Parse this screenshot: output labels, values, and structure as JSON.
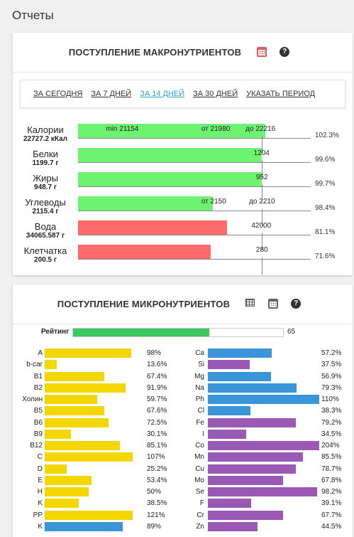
{
  "page_title": "Отчеты",
  "macro": {
    "title": "ПОСТУПЛЕНИЕ МАКРОНУТРИЕНТОВ",
    "periods": [
      "ЗА СЕГОДНЯ",
      "ЗА 7 ДНЕЙ",
      "ЗА 14 ДНЕЙ",
      "ЗА 30 ДНЕЙ",
      "УКАЗАТЬ ПЕРИОД"
    ],
    "active_period": 2,
    "rows": [
      {
        "name": "Калории",
        "value": "22727.2 кКал",
        "pct": "102.3%",
        "fill": 0.806,
        "color": "green",
        "labels": [
          {
            "t": "min 21154",
            "x": 0.12
          },
          {
            "t": "от 21980",
            "x": 0.53
          },
          {
            "t": "до 22216",
            "x": 0.72
          }
        ]
      },
      {
        "name": "Белки",
        "value": "1199.7 г",
        "pct": "99.6%",
        "fill": 0.79,
        "color": "green",
        "labels": [
          {
            "t": "1204",
            "x": 0.755
          }
        ]
      },
      {
        "name": "Жиры",
        "value": "948.7 г",
        "pct": "99.7%",
        "fill": 0.79,
        "color": "green",
        "labels": [
          {
            "t": "952",
            "x": 0.765
          }
        ]
      },
      {
        "name": "Углеводы",
        "value": "2115.4 г",
        "pct": "98.4%",
        "fill": 0.58,
        "color": "green",
        "labels": [
          {
            "t": "от 2150",
            "x": 0.53
          },
          {
            "t": "до 2210",
            "x": 0.735
          }
        ]
      },
      {
        "name": "Вода",
        "value": "34065.587 г",
        "pct": "81.1%",
        "fill": 0.64,
        "color": "red",
        "labels": [
          {
            "t": "42000",
            "x": 0.745
          }
        ]
      },
      {
        "name": "Клетчатка",
        "value": "200.5 г",
        "pct": "71.6%",
        "fill": 0.57,
        "color": "red",
        "labels": [
          {
            "t": "280",
            "x": 0.765
          }
        ]
      }
    ]
  },
  "micro": {
    "title": "ПОСТУПЛЕНИЕ МИКРОНУТРИЕНТОВ",
    "rating_label": "Рейтинг",
    "rating_value": "65",
    "rating_fill": 0.65,
    "vitamins": [
      {
        "name": "A",
        "pct": "98%",
        "fill": 0.98
      },
      {
        "name": "b-car",
        "pct": "13.6%",
        "fill": 0.136
      },
      {
        "name": "B1",
        "pct": "67.4%",
        "fill": 0.674
      },
      {
        "name": "B2",
        "pct": "91.9%",
        "fill": 0.919
      },
      {
        "name": "Холин",
        "pct": "59.7%",
        "fill": 0.597
      },
      {
        "name": "B5",
        "pct": "67.6%",
        "fill": 0.676
      },
      {
        "name": "B6",
        "pct": "72.5%",
        "fill": 0.725
      },
      {
        "name": "B9",
        "pct": "30.1%",
        "fill": 0.301
      },
      {
        "name": "B12",
        "pct": "85.1%",
        "fill": 0.851
      },
      {
        "name": "C",
        "pct": "107%",
        "fill": 1.0
      },
      {
        "name": "D",
        "pct": "25.2%",
        "fill": 0.252
      },
      {
        "name": "E",
        "pct": "53.4%",
        "fill": 0.534
      },
      {
        "name": "H",
        "pct": "50%",
        "fill": 0.5
      },
      {
        "name": "K",
        "pct": "38.5%",
        "fill": 0.385
      },
      {
        "name": "PP",
        "pct": "121%",
        "fill": 1.0
      },
      {
        "name": "K",
        "pct": "89%",
        "fill": 0.89,
        "color": "blue"
      }
    ],
    "minerals": [
      {
        "name": "Ca",
        "pct": "57.2%",
        "fill": 0.572,
        "color": "blue"
      },
      {
        "name": "Si",
        "pct": "37.5%",
        "fill": 0.375,
        "color": "purple"
      },
      {
        "name": "Mg",
        "pct": "56.9%",
        "fill": 0.569,
        "color": "blue"
      },
      {
        "name": "Na",
        "pct": "79.3%",
        "fill": 0.793,
        "color": "blue"
      },
      {
        "name": "Ph",
        "pct": "110%",
        "fill": 1.0,
        "color": "blue"
      },
      {
        "name": "Cl",
        "pct": "38.3%",
        "fill": 0.383,
        "color": "blue"
      },
      {
        "name": "Fe",
        "pct": "79.2%",
        "fill": 0.792,
        "color": "purple"
      },
      {
        "name": "I",
        "pct": "34.5%",
        "fill": 0.345,
        "color": "purple"
      },
      {
        "name": "Co",
        "pct": "204%",
        "fill": 1.0,
        "color": "purple"
      },
      {
        "name": "Mn",
        "pct": "85.5%",
        "fill": 0.855,
        "color": "purple"
      },
      {
        "name": "Cu",
        "pct": "78.7%",
        "fill": 0.787,
        "color": "purple"
      },
      {
        "name": "Mo",
        "pct": "67.8%",
        "fill": 0.678,
        "color": "purple"
      },
      {
        "name": "Se",
        "pct": "98.2%",
        "fill": 0.982,
        "color": "purple"
      },
      {
        "name": "F",
        "pct": "39.1%",
        "fill": 0.391,
        "color": "purple"
      },
      {
        "name": "Cr",
        "pct": "67.7%",
        "fill": 0.677,
        "color": "purple"
      },
      {
        "name": "Zn",
        "pct": "44.5%",
        "fill": 0.445,
        "color": "purple"
      }
    ]
  }
}
